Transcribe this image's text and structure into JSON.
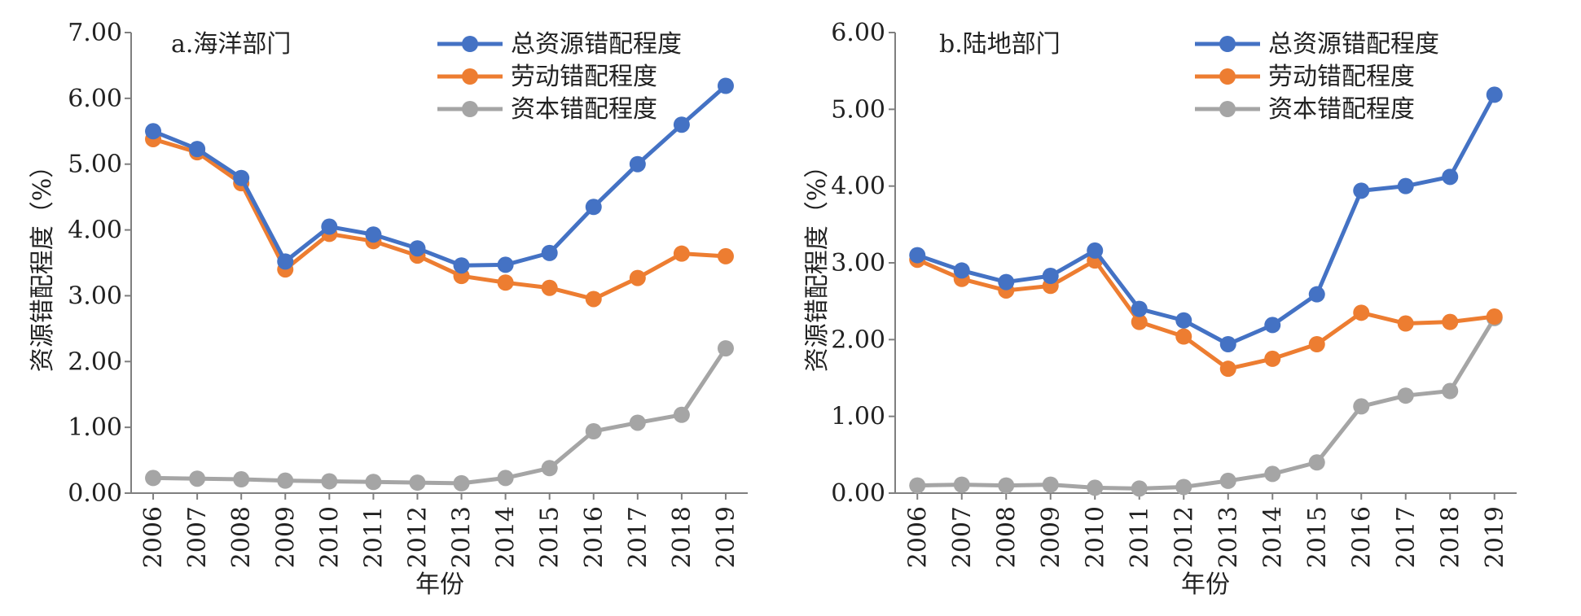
{
  "chart_data": [
    {
      "type": "line",
      "title": "a.海洋部门",
      "xlabel": "年份",
      "ylabel": "资源错配程度（%）",
      "categories": [
        "2006",
        "2007",
        "2008",
        "2009",
        "2010",
        "2011",
        "2012",
        "2013",
        "2014",
        "2015",
        "2016",
        "2017",
        "2018",
        "2019"
      ],
      "ylim": [
        0,
        7
      ],
      "yticks": [
        "0.00",
        "1.00",
        "2.00",
        "3.00",
        "4.00",
        "5.00",
        "6.00",
        "7.00"
      ],
      "legend_position": "top-right",
      "grid": false,
      "series": [
        {
          "name": "总资源错配程度",
          "color": "#4472C4",
          "values": [
            5.5,
            5.23,
            4.79,
            3.52,
            4.05,
            3.93,
            3.72,
            3.46,
            3.47,
            3.65,
            4.35,
            5.0,
            5.6,
            6.19
          ]
        },
        {
          "name": "劳动错配程度",
          "color": "#ED7D31",
          "values": [
            5.38,
            5.18,
            4.71,
            3.4,
            3.94,
            3.83,
            3.61,
            3.3,
            3.2,
            3.12,
            2.95,
            3.27,
            3.64,
            3.6
          ]
        },
        {
          "name": "资本错配程度",
          "color": "#A5A5A5",
          "values": [
            0.23,
            0.22,
            0.21,
            0.19,
            0.18,
            0.17,
            0.16,
            0.15,
            0.23,
            0.38,
            0.94,
            1.07,
            1.19,
            2.2
          ]
        }
      ]
    },
    {
      "type": "line",
      "title": "b.陆地部门",
      "xlabel": "年份",
      "ylabel": "资源错配程度（%）",
      "categories": [
        "2006",
        "2007",
        "2008",
        "2009",
        "2010",
        "2011",
        "2012",
        "2013",
        "2014",
        "2015",
        "2016",
        "2017",
        "2018",
        "2019"
      ],
      "ylim": [
        0,
        6
      ],
      "yticks": [
        "0.00",
        "1.00",
        "2.00",
        "3.00",
        "4.00",
        "5.00",
        "6.00"
      ],
      "legend_position": "top-right",
      "grid": false,
      "series": [
        {
          "name": "总资源错配程度",
          "color": "#4472C4",
          "values": [
            3.1,
            2.9,
            2.75,
            2.83,
            3.16,
            2.4,
            2.25,
            1.94,
            2.19,
            2.59,
            3.94,
            4.0,
            4.12,
            5.19
          ]
        },
        {
          "name": "劳动错配程度",
          "color": "#ED7D31",
          "values": [
            3.04,
            2.79,
            2.64,
            2.7,
            3.03,
            2.23,
            2.04,
            1.62,
            1.75,
            1.94,
            2.35,
            2.21,
            2.23,
            2.3
          ]
        },
        {
          "name": "资本错配程度",
          "color": "#A5A5A5",
          "values": [
            0.1,
            0.11,
            0.1,
            0.11,
            0.07,
            0.06,
            0.08,
            0.16,
            0.25,
            0.4,
            1.13,
            1.27,
            1.33,
            2.28
          ]
        }
      ]
    }
  ]
}
